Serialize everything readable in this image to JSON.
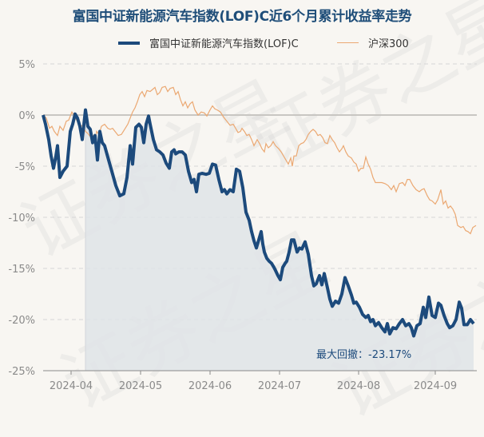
{
  "watermark": "证券之星",
  "chart_data": {
    "type": "line",
    "title": "富国中证新能源汽车指数(LOF)C近6个月累计收益率走势",
    "xlabel": "",
    "ylabel": "",
    "ylim": [
      -25,
      5
    ],
    "yticks": [
      "5%",
      "0%",
      "-5%",
      "-10%",
      "-15%",
      "-20%",
      "-25%"
    ],
    "ytick_values": [
      5,
      0,
      -5,
      -10,
      -15,
      -20,
      -25
    ],
    "xticks": [
      "2024-04",
      "2024-05",
      "2024-06",
      "2024-07",
      "2024-08",
      "2024-09"
    ],
    "grid": true,
    "legend_position": "top-center",
    "annotation": "最大回撤：-23.17%",
    "colors": {
      "fund": "#1c4a7c",
      "index": "#eba872",
      "shade": "#dfe4e8",
      "zero": "#c8c6c2"
    },
    "series": [
      {
        "name": "富国中证新能源汽车指数(LOF)C",
        "x": [
          54,
          57,
          61,
          64,
          67,
          70,
          72,
          75,
          79,
          84,
          88,
          91,
          94,
          97,
          100,
          103,
          107,
          110,
          113,
          116,
          119,
          122,
          125,
          128,
          131,
          136,
          140,
          145,
          150,
          155,
          159,
          163,
          166,
          170,
          174,
          177,
          180,
          183,
          186,
          188,
          192,
          196,
          200,
          204,
          208,
          212,
          215,
          218,
          220,
          224,
          228,
          232,
          236,
          240,
          243,
          246,
          249,
          253,
          258,
          262,
          266,
          270,
          274,
          278,
          281,
          284,
          288,
          292,
          296,
          300,
          304,
          308,
          312,
          315,
          318,
          321,
          324,
          327,
          329,
          331,
          334,
          337,
          340,
          343,
          345,
          348,
          351,
          354,
          357,
          359,
          362,
          365,
          368,
          372,
          375,
          378,
          382,
          386,
          390,
          393,
          396,
          400,
          403,
          406,
          410,
          413,
          416,
          420,
          424,
          428,
          432,
          436,
          440,
          443,
          446,
          450,
          454,
          458,
          461,
          464,
          467,
          470,
          474,
          478,
          482,
          485,
          488,
          492,
          496,
          500,
          504,
          508,
          512,
          515,
          518,
          522,
          526,
          530,
          533,
          537,
          541,
          545,
          549,
          552,
          556,
          560,
          563,
          567,
          571,
          575,
          578,
          581,
          585,
          589,
          593
        ],
        "values": [
          0.0,
          -0.9,
          -2.4,
          -4.0,
          -5.2,
          -4.0,
          -3.0,
          -6.1,
          -5.5,
          -5.0,
          -1.6,
          -0.9,
          0.1,
          -0.3,
          -1.1,
          -2.4,
          0.5,
          -1.1,
          -1.4,
          -2.7,
          -2.0,
          -4.4,
          -1.6,
          -2.7,
          -3.0,
          -4.4,
          -5.5,
          -6.9,
          -7.9,
          -7.7,
          -6.1,
          -3.0,
          -4.8,
          -1.2,
          -0.9,
          -1.2,
          -2.7,
          -0.9,
          -0.1,
          -0.9,
          -2.4,
          -3.4,
          -3.6,
          -3.9,
          -4.7,
          -5.2,
          -3.6,
          -3.4,
          -3.8,
          -3.6,
          -3.6,
          -3.9,
          -5.5,
          -6.6,
          -6.3,
          -7.5,
          -5.8,
          -5.7,
          -5.8,
          -5.7,
          -4.8,
          -4.9,
          -6.3,
          -7.5,
          -7.3,
          -7.7,
          -7.3,
          -7.5,
          -5.3,
          -5.5,
          -7.1,
          -9.5,
          -10.3,
          -11.4,
          -12.3,
          -13.0,
          -12.2,
          -11.4,
          -12.6,
          -13.4,
          -14.0,
          -14.3,
          -14.5,
          -14.9,
          -15.2,
          -15.7,
          -16.1,
          -14.9,
          -14.5,
          -14.3,
          -13.4,
          -12.2,
          -12.2,
          -13.4,
          -13.0,
          -13.1,
          -12.4,
          -13.6,
          -15.7,
          -16.7,
          -16.5,
          -15.7,
          -16.6,
          -15.5,
          -16.9,
          -18.0,
          -18.7,
          -18.2,
          -18.4,
          -17.5,
          -15.9,
          -16.7,
          -17.6,
          -18.4,
          -18.3,
          -18.8,
          -19.5,
          -19.8,
          -19.6,
          -20.2,
          -20.0,
          -20.6,
          -20.3,
          -20.8,
          -21.2,
          -20.4,
          -21.4,
          -20.8,
          -20.9,
          -20.4,
          -20.0,
          -20.6,
          -20.4,
          -20.8,
          -21.6,
          -20.6,
          -20.4,
          -18.8,
          -19.8,
          -17.8,
          -19.6,
          -19.8,
          -18.4,
          -18.6,
          -19.6,
          -20.4,
          -20.8,
          -20.6,
          -20.0,
          -18.3,
          -18.9,
          -20.5,
          -20.5,
          -20.0,
          -20.4
        ]
      },
      {
        "name": "沪深300",
        "x": [
          54,
          58,
          62,
          65,
          68,
          72,
          75,
          79,
          83,
          86,
          90,
          93,
          96,
          100,
          104,
          107,
          110,
          114,
          117,
          119,
          121,
          124,
          127,
          131,
          135,
          138,
          141,
          144,
          148,
          152,
          156,
          160,
          163,
          166,
          169,
          172,
          175,
          178,
          181,
          184,
          188,
          191,
          194,
          197,
          200,
          203,
          207,
          210,
          213,
          217,
          220,
          223,
          226,
          229,
          232,
          235,
          238,
          241,
          244,
          248,
          252,
          256,
          259,
          263,
          266,
          269,
          272,
          276,
          280,
          284,
          288,
          292,
          295,
          298,
          301,
          303,
          306,
          309,
          312,
          315,
          318,
          322,
          325,
          328,
          331,
          333,
          336,
          339,
          342,
          345,
          349,
          352,
          355,
          358,
          361,
          364,
          366,
          368,
          371,
          374,
          377,
          380,
          383,
          386,
          389,
          392,
          395,
          398,
          401,
          404,
          407,
          410,
          413,
          416,
          419,
          422,
          425,
          428,
          430,
          433,
          436,
          440,
          443,
          446,
          449,
          452,
          455,
          458,
          461,
          464,
          467,
          470,
          474,
          478,
          482,
          486,
          490,
          493,
          496,
          500,
          504,
          507,
          510,
          513,
          517,
          521,
          525,
          528,
          531,
          535,
          538,
          541,
          545,
          548,
          552,
          555,
          558,
          561,
          564,
          567,
          570,
          573,
          577,
          580,
          583,
          586,
          589,
          592,
          596
        ],
        "values": [
          0.0,
          -0.3,
          -1.3,
          -1.1,
          -1.6,
          -2.0,
          -1.1,
          -1.5,
          -0.6,
          -0.5,
          0.3,
          -0.1,
          -0.5,
          -1.0,
          -1.1,
          -1.6,
          -1.8,
          -2.2,
          -2.0,
          -2.6,
          -1.6,
          -1.9,
          -1.1,
          -0.9,
          -1.3,
          -1.4,
          -1.3,
          -1.6,
          -2.0,
          -1.9,
          -1.4,
          -0.9,
          -0.3,
          0.3,
          0.7,
          1.3,
          2.0,
          2.3,
          1.8,
          2.4,
          2.3,
          2.5,
          2.7,
          2.0,
          2.2,
          2.7,
          2.8,
          2.3,
          2.6,
          2.7,
          2.0,
          2.3,
          1.5,
          0.9,
          1.3,
          0.7,
          1.1,
          1.3,
          0.5,
          0.0,
          0.3,
          0.2,
          -0.1,
          0.5,
          0.9,
          0.6,
          0.5,
          0.3,
          -0.2,
          -0.6,
          -1.0,
          -0.9,
          -1.3,
          -1.7,
          -1.6,
          -1.3,
          -1.6,
          -2.0,
          -1.9,
          -2.4,
          -3.0,
          -2.4,
          -2.8,
          -3.3,
          -3.6,
          -2.8,
          -3.2,
          -3.0,
          -2.6,
          -3.0,
          -3.3,
          -3.6,
          -4.0,
          -4.4,
          -4.8,
          -4.2,
          -5.0,
          -4.0,
          -4.0,
          -3.0,
          -2.8,
          -2.7,
          -2.4,
          -1.9,
          -1.6,
          -1.4,
          -1.6,
          -2.0,
          -1.9,
          -2.2,
          -2.7,
          -2.8,
          -2.0,
          -2.4,
          -2.7,
          -3.2,
          -3.6,
          -3.3,
          -3.0,
          -3.6,
          -4.0,
          -4.2,
          -4.6,
          -4.8,
          -5.5,
          -5.2,
          -5.2,
          -4.1,
          -4.8,
          -5.3,
          -6.1,
          -6.6,
          -6.6,
          -6.6,
          -6.7,
          -6.9,
          -7.3,
          -6.9,
          -7.5,
          -6.7,
          -6.6,
          -6.9,
          -6.3,
          -6.3,
          -6.9,
          -7.3,
          -7.5,
          -7.3,
          -7.2,
          -7.9,
          -8.3,
          -8.4,
          -8.7,
          -8.3,
          -7.3,
          -8.7,
          -8.4,
          -9.1,
          -8.9,
          -9.2,
          -9.7,
          -10.8,
          -11.0,
          -10.9,
          -11.3,
          -11.4,
          -11.6,
          -11.0,
          -10.8
        ]
      }
    ]
  }
}
